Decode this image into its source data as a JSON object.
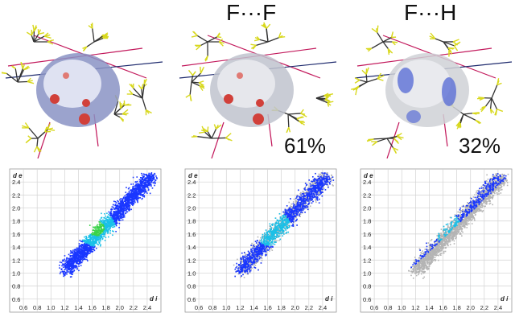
{
  "panels": [
    {
      "title": "",
      "percentage": ""
    },
    {
      "title": "F···F",
      "percentage": "61%"
    },
    {
      "title": "F···H",
      "percentage": "32%"
    }
  ],
  "fingerprint": {
    "y_axis_label": "d e",
    "x_axis_label": "d i",
    "y_ticks": [
      "2.4",
      "2.2",
      "2.0",
      "1.8",
      "1.6",
      "1.4",
      "1.2",
      "1.0",
      "0.8",
      "0.6"
    ],
    "x_ticks": [
      "0.6",
      "0.8",
      "1.0",
      "1.2",
      "1.4",
      "1.6",
      "1.8",
      "2.0",
      "2.2",
      "2.4"
    ]
  },
  "colors": {
    "surface": "#8a93c4",
    "surface_red": "#d1403a",
    "point_blue": "#1a37ff",
    "point_cyan": "#19c0e8",
    "point_green": "#3bd34a",
    "point_gray": "#b4b4b4",
    "bond": "#333333",
    "fluorine": "#d8d81e",
    "link": "#c2185b"
  }
}
